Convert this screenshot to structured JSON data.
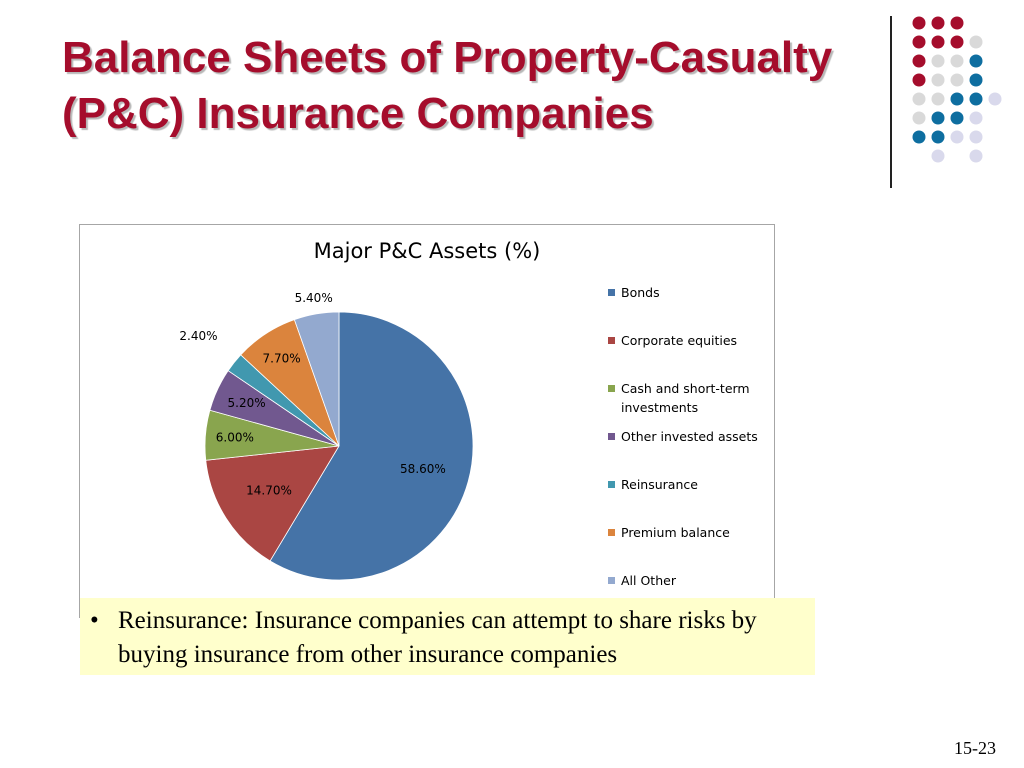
{
  "slide": {
    "title_line1": "Balance Sheets of Property-Casualty",
    "title_line2": "(P&C) Insurance Companies",
    "bullet_symbol": "•",
    "bullet_text": "Reinsurance: Insurance companies can attempt to share risks by buying insurance from other insurance companies",
    "page_number": "15-23"
  },
  "chart_data": {
    "type": "pie",
    "title": "Major P&C Assets (%)",
    "categories": [
      "Bonds",
      "Corporate equities",
      "Cash and short-term investments",
      "Other invested assets",
      "Reinsurance",
      "Premium balance",
      "All Other"
    ],
    "values": [
      58.6,
      14.7,
      6.0,
      5.2,
      2.4,
      7.7,
      5.4
    ],
    "data_labels": [
      "58.60%",
      "14.70%",
      "6.00%",
      "5.20%",
      "2.40%",
      "7.70%",
      "5.40%"
    ],
    "colors": [
      "#4573a7",
      "#aa4643",
      "#89a54e",
      "#71588f",
      "#4198af",
      "#db843d",
      "#93a9cf"
    ],
    "legend_position": "right"
  },
  "theme": {
    "title_color": "#a50d2c",
    "dot_red": "#a50d2c",
    "dot_blue": "#0e6ea0",
    "dot_grey": "#d9d9d9",
    "dot_lavender": "#d9d9ec",
    "callout_background": "#ffffcc"
  }
}
